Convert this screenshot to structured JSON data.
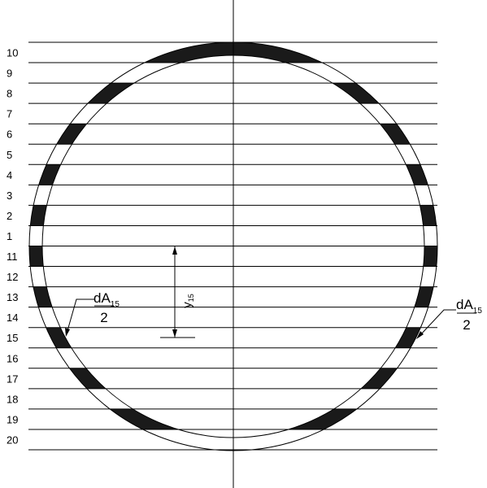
{
  "row_labels": [
    "10",
    "9",
    "8",
    "7",
    "6",
    "5",
    "4",
    "3",
    "2",
    "1",
    "11",
    "12",
    "13",
    "14",
    "15",
    "16",
    "17",
    "18",
    "19",
    "20"
  ],
  "shaded_strips": [
    10,
    8,
    6,
    4,
    2,
    11,
    13,
    15,
    17,
    19
  ],
  "left_annotation": {
    "numerator": "dA",
    "subscript": "15",
    "denominator": "2"
  },
  "right_annotation": {
    "numerator": "dA",
    "subscript": "15",
    "denominator": "2"
  },
  "dimension": {
    "symbol": "y",
    "subscript": "15"
  },
  "colors": {
    "stroke": "#000000",
    "fill": "#1a1a1a",
    "background": "#ffffff"
  }
}
